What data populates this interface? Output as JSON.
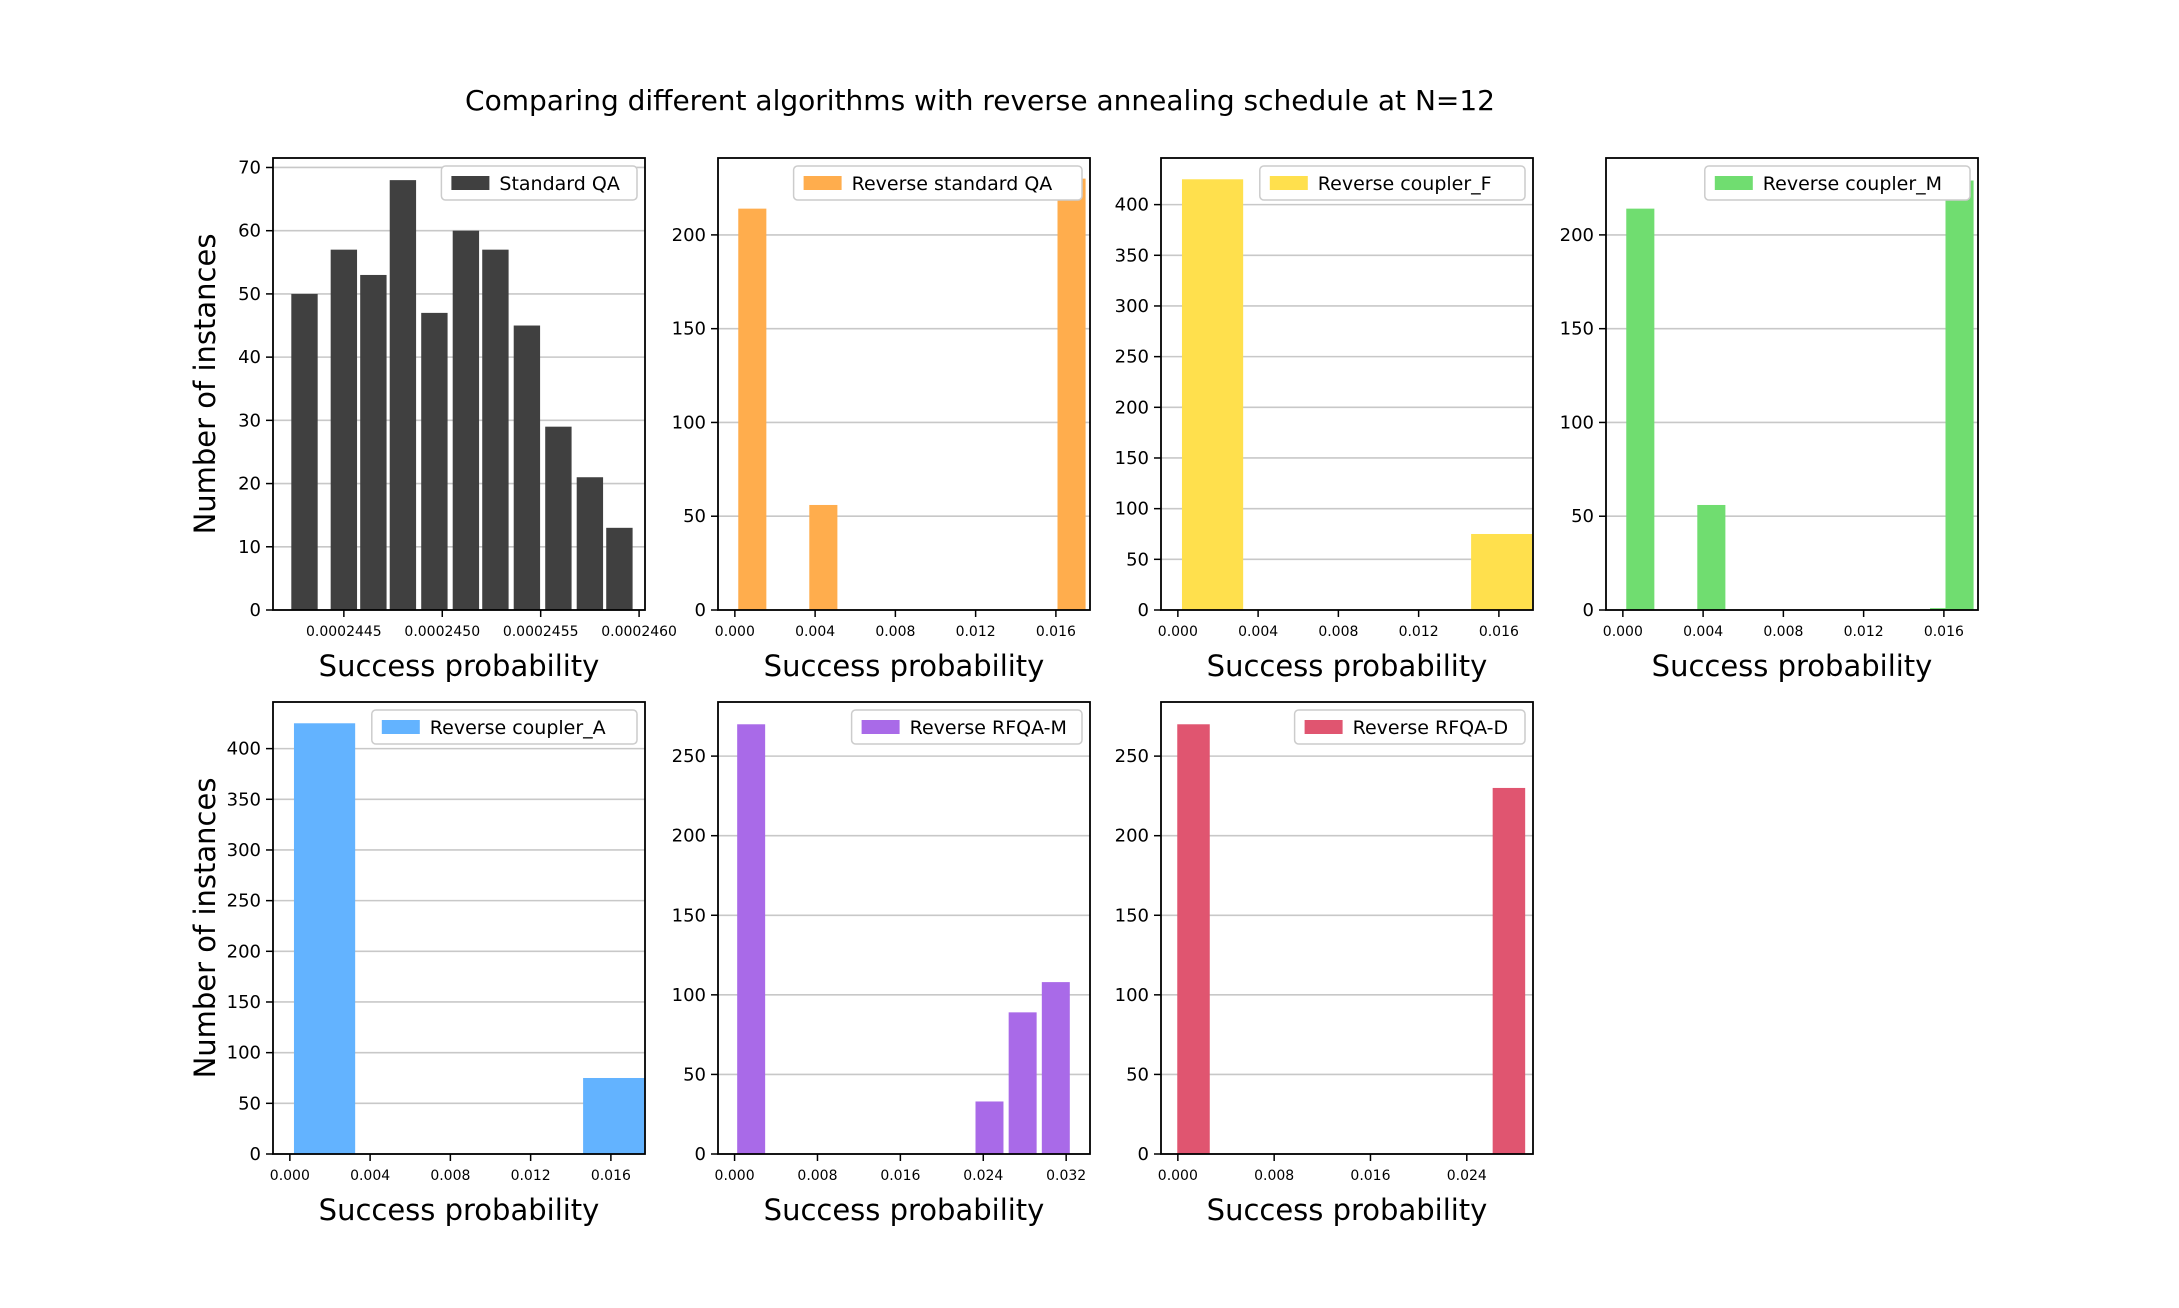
{
  "figure": {
    "title": "Comparing different algorithms with reverse annealing schedule at N=12"
  },
  "chart_data": [
    {
      "type": "bar",
      "title": "",
      "legend": "Standard QA",
      "legend_position": "top-right",
      "xlabel": "Success probability",
      "ylabel": "Number of instances",
      "color": "#404040",
      "grid": "y",
      "x_ticks": [
        "0.0002445",
        "0.0002450",
        "0.0002455",
        "0.0002460"
      ],
      "x_tick_values": [
        0.0002445,
        0.000245,
        0.0002455,
        0.000246
      ],
      "y_ticks": [
        0,
        10,
        20,
        30,
        40,
        50,
        60,
        70
      ],
      "xlim": [
        0.00024414,
        0.00024603
      ],
      "ylim": [
        0,
        71.5
      ],
      "bar_width": 1.34e-07,
      "bars": [
        {
          "x": 0.0002443,
          "y": 50
        },
        {
          "x": 0.0002445,
          "y": 57
        },
        {
          "x": 0.00024465,
          "y": 53
        },
        {
          "x": 0.0002448,
          "y": 68
        },
        {
          "x": 0.00024496,
          "y": 47
        },
        {
          "x": 0.00024512,
          "y": 60
        },
        {
          "x": 0.00024527,
          "y": 57
        },
        {
          "x": 0.00024543,
          "y": 45
        },
        {
          "x": 0.00024559,
          "y": 29
        },
        {
          "x": 0.00024575,
          "y": 21
        },
        {
          "x": 0.0002459,
          "y": 13
        }
      ]
    },
    {
      "type": "bar",
      "title": "",
      "legend": "Reverse standard QA",
      "legend_position": "top-right",
      "xlabel": "Success probability",
      "ylabel": "",
      "color": "#ffad4d",
      "grid": "y",
      "x_ticks": [
        "0.000",
        "0.004",
        "0.008",
        "0.012",
        "0.016"
      ],
      "x_tick_values": [
        0.0,
        0.004,
        0.008,
        0.012,
        0.016
      ],
      "y_ticks": [
        0,
        50,
        100,
        150,
        200
      ],
      "xlim": [
        -0.00084,
        0.0177
      ],
      "ylim": [
        0,
        241
      ],
      "bar_width": 0.0014,
      "bars": [
        {
          "x": 0.00087,
          "y": 214
        },
        {
          "x": 0.00441,
          "y": 56
        },
        {
          "x": 0.00134,
          "y": 0
        },
        {
          "x": 0.01678,
          "y": 230
        }
      ]
    },
    {
      "type": "bar",
      "title": "",
      "legend": "Reverse coupler_F",
      "legend_position": "top-right",
      "xlabel": "Success probability",
      "ylabel": "",
      "color": "#ffe04d",
      "grid": "y",
      "x_ticks": [
        "0.000",
        "0.004",
        "0.008",
        "0.012",
        "0.016"
      ],
      "x_tick_values": [
        0.0,
        0.004,
        0.008,
        0.012,
        0.016
      ],
      "y_ticks": [
        0,
        50,
        100,
        150,
        200,
        250,
        300,
        350,
        400
      ],
      "xlim": [
        -0.00084,
        0.0177
      ],
      "ylim": [
        0,
        446
      ],
      "bar_width": 0.00305,
      "bars": [
        {
          "x": 0.00173,
          "y": 425
        },
        {
          "x": 0.01614,
          "y": 75
        }
      ]
    },
    {
      "type": "bar",
      "title": "",
      "legend": "Reverse coupler_M",
      "legend_position": "top-right",
      "xlabel": "Success probability",
      "ylabel": "",
      "color": "#70dd70",
      "grid": "y",
      "x_ticks": [
        "0.000",
        "0.004",
        "0.008",
        "0.012",
        "0.016"
      ],
      "x_tick_values": [
        0.0,
        0.004,
        0.008,
        0.012,
        0.016
      ],
      "y_ticks": [
        0,
        50,
        100,
        150,
        200
      ],
      "xlim": [
        -0.00084,
        0.0177
      ],
      "ylim": [
        0,
        241
      ],
      "bar_width": 0.0014,
      "bars": [
        {
          "x": 0.00087,
          "y": 214
        },
        {
          "x": 0.00441,
          "y": 56
        },
        {
          "x": 0.01601,
          "y": 1
        },
        {
          "x": 0.01678,
          "y": 229
        }
      ]
    },
    {
      "type": "bar",
      "title": "",
      "legend": "Reverse coupler_A",
      "legend_position": "top-right",
      "xlabel": "Success probability",
      "ylabel": "Number of instances",
      "color": "#63b3ff",
      "grid": "y",
      "x_ticks": [
        "0.000",
        "0.004",
        "0.008",
        "0.012",
        "0.016"
      ],
      "x_tick_values": [
        0.0,
        0.004,
        0.008,
        0.012,
        0.016
      ],
      "y_ticks": [
        0,
        50,
        100,
        150,
        200,
        250,
        300,
        350,
        400
      ],
      "xlim": [
        -0.00084,
        0.0177
      ],
      "ylim": [
        0,
        446
      ],
      "bar_width": 0.00305,
      "bars": [
        {
          "x": 0.00173,
          "y": 425
        },
        {
          "x": 0.01614,
          "y": 75
        }
      ]
    },
    {
      "type": "bar",
      "title": "",
      "legend": "Reverse RFQA-M",
      "legend_position": "top-right",
      "xlabel": "Success probability",
      "ylabel": "",
      "color": "#a96ae8",
      "grid": "y",
      "x_ticks": [
        "0.000",
        "0.008",
        "0.016",
        "0.024",
        "0.032"
      ],
      "x_tick_values": [
        0.0,
        0.008,
        0.016,
        0.024,
        0.032
      ],
      "y_ticks": [
        0,
        50,
        100,
        150,
        200,
        250
      ],
      "xlim": [
        -0.0016,
        0.0343
      ],
      "ylim": [
        0,
        284
      ],
      "bar_width": 0.0027,
      "bars": [
        {
          "x": 0.0016,
          "y": 270
        },
        {
          "x": 0.0246,
          "y": 33
        },
        {
          "x": 0.0278,
          "y": 89
        },
        {
          "x": 0.031,
          "y": 108
        }
      ]
    },
    {
      "type": "bar",
      "title": "",
      "legend": "Reverse RFQA-D",
      "legend_position": "top-right",
      "xlabel": "Success probability",
      "ylabel": "",
      "color": "#e05570",
      "grid": "y",
      "x_ticks": [
        "0.000",
        "0.008",
        "0.016",
        "0.024"
      ],
      "x_tick_values": [
        0.0,
        0.008,
        0.016,
        0.024
      ],
      "y_ticks": [
        0,
        50,
        100,
        150,
        200,
        250
      ],
      "xlim": [
        -0.0014,
        0.0295
      ],
      "ylim": [
        0,
        284
      ],
      "bar_width": 0.0027,
      "bars": [
        {
          "x": 0.0013,
          "y": 270
        },
        {
          "x": 0.0275,
          "y": 230
        }
      ]
    }
  ]
}
